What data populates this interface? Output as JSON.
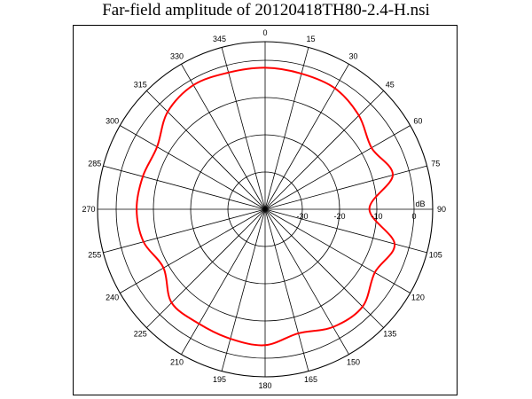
{
  "title": "Far-field amplitude of 20120418TH80-2.4-H.nsi",
  "chart_data": {
    "type": "polar-line",
    "title": "Far-field amplitude of 20120418TH80-2.4-H.nsi",
    "angle_unit": "deg",
    "angle_direction": "clockwise",
    "zero_location": "top",
    "angle_ticks": [
      0,
      15,
      30,
      45,
      60,
      75,
      90,
      105,
      120,
      135,
      150,
      165,
      180,
      195,
      210,
      225,
      240,
      255,
      270,
      285,
      300,
      315,
      330,
      345
    ],
    "angle_labels": [
      "0",
      "15",
      "30",
      "45",
      "60",
      "75",
      "90",
      "105",
      "120",
      "135",
      "150",
      "165",
      "180",
      "195",
      "210",
      "225",
      "240",
      "255",
      "270",
      "285",
      "300",
      "315",
      "330",
      "345"
    ],
    "radial_unit_label": "dB",
    "radial_range": [
      -40,
      5
    ],
    "radial_ticks": [
      -30,
      -20,
      -10,
      0
    ],
    "radial_tick_labels": [
      "-30",
      "-20",
      "-10",
      "0"
    ],
    "grid": true,
    "colors": {
      "series": "#ff0000",
      "grid": "#000000",
      "background": "#ffffff"
    },
    "series": [
      {
        "color": "#ff0000",
        "angles": [
          0,
          15,
          30,
          45,
          60,
          75,
          90,
          105,
          120,
          135,
          150,
          165,
          180,
          195,
          210,
          225,
          240,
          255,
          270,
          285,
          300,
          315,
          330,
          345,
          360
        ],
        "values": [
          -2.0,
          -2.3,
          -2.5,
          -4.4,
          -7.0,
          -4.5,
          -12.0,
          -4.0,
          -6.0,
          -3.0,
          -3.5,
          -5.5,
          -3.5,
          -4.0,
          -4.5,
          -4.5,
          -8.5,
          -6.2,
          -5.5,
          -6.0,
          -6.5,
          -3.0,
          -1.5,
          -2.0,
          -2.0
        ]
      }
    ]
  }
}
